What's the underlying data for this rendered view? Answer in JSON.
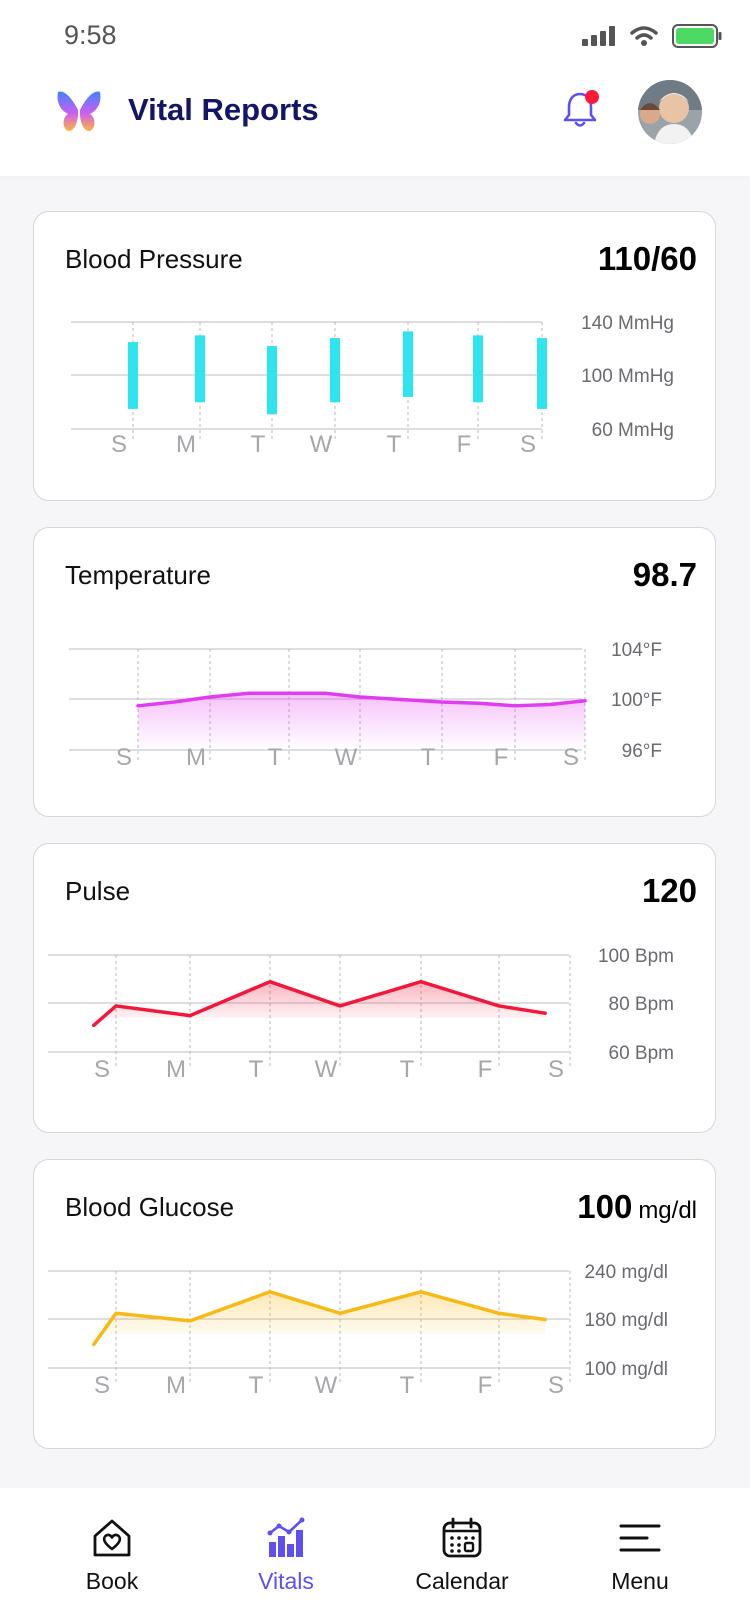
{
  "status": {
    "time": "9:58"
  },
  "header": {
    "title": "Vital Reports"
  },
  "cards": [
    {
      "title": "Blood Pressure",
      "value": "110/60",
      "y_labels": [
        "140 MmHg",
        "100 MmHg",
        "60 MmHg"
      ],
      "days": [
        "S",
        "M",
        "T",
        "W",
        "T",
        "F",
        "S"
      ],
      "color": "#2de4ef"
    },
    {
      "title": "Temperature",
      "value": "98.7",
      "y_labels": [
        "104°F",
        "100°F",
        "96°F"
      ],
      "days": [
        "S",
        "M",
        "T",
        "W",
        "T",
        "F",
        "S"
      ],
      "color": "#e23cf0"
    },
    {
      "title": "Pulse",
      "value": "120",
      "y_labels": [
        "100 Bpm",
        "80 Bpm",
        "60 Bpm"
      ],
      "days": [
        "S",
        "M",
        "T",
        "W",
        "T",
        "F",
        "S"
      ],
      "color": "#f2183c"
    },
    {
      "title": "Blood Glucose",
      "value": "100",
      "unit": "mg/dl",
      "y_labels": [
        "240 mg/dl",
        "180 mg/dl",
        "100 mg/dl"
      ],
      "days": [
        "S",
        "M",
        "T",
        "W",
        "T",
        "F",
        "S"
      ],
      "color": "#f7b916"
    }
  ],
  "nav": {
    "items": [
      {
        "label": "Book",
        "icon": "home-heart-icon"
      },
      {
        "label": "Vitals",
        "icon": "chart-icon",
        "active": true
      },
      {
        "label": "Calendar",
        "icon": "calendar-icon"
      },
      {
        "label": "Menu",
        "icon": "menu-icon"
      }
    ]
  },
  "chart_data": [
    {
      "type": "bar",
      "categories": [
        "S",
        "M",
        "T",
        "W",
        "T",
        "F",
        "S"
      ],
      "series": [
        {
          "name": "systolic",
          "values": [
            125,
            130,
            122,
            128,
            133,
            130,
            128
          ]
        },
        {
          "name": "diastolic",
          "values": [
            75,
            80,
            71,
            80,
            84,
            80,
            75
          ]
        }
      ],
      "ylim": [
        60,
        140
      ]
    },
    {
      "type": "area",
      "categories": [
        "S",
        "M",
        "T",
        "W",
        "T",
        "F",
        "S"
      ],
      "x": [
        0,
        0.5,
        1.0,
        1.5,
        2.0,
        2.5,
        3.0,
        3.5,
        4.0,
        4.5,
        5.0,
        5.5,
        6.0
      ],
      "values": [
        99.5,
        99.8,
        100.2,
        100.5,
        100.5,
        100.5,
        100.2,
        100.0,
        99.8,
        99.7,
        99.5,
        99.6,
        99.9
      ],
      "ylim": [
        96,
        104
      ]
    },
    {
      "type": "area",
      "categories": [
        "S",
        "M",
        "T",
        "W",
        "T",
        "F",
        "S"
      ],
      "x": [
        -0.3,
        0,
        1,
        2,
        3,
        4,
        5,
        5.65
      ],
      "values": [
        71,
        79,
        75,
        89,
        79,
        89,
        79,
        76
      ],
      "ylim": [
        60,
        100
      ]
    },
    {
      "type": "area",
      "categories": [
        "S",
        "M",
        "T",
        "W",
        "T",
        "F",
        "S"
      ],
      "x": [
        -0.3,
        0,
        1,
        2,
        3,
        4,
        5,
        5.65
      ],
      "values": [
        134,
        179,
        168,
        210,
        179,
        210,
        179,
        170
      ],
      "ylim": [
        100,
        240
      ]
    }
  ]
}
